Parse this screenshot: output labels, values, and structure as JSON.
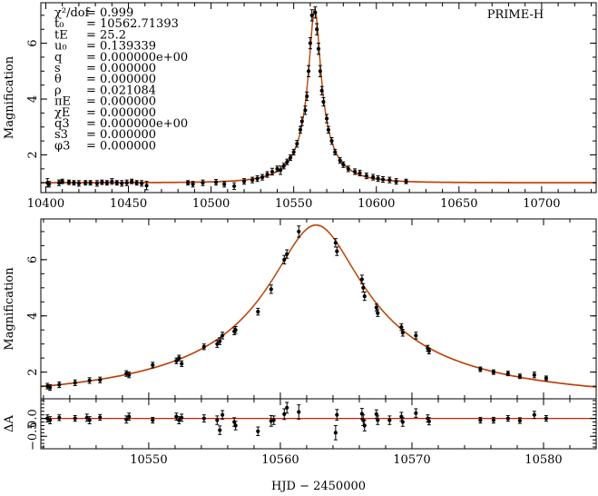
{
  "chart_data": [
    {
      "id": "top",
      "type": "scatter",
      "title": "",
      "label": "PRIME-H",
      "xlabel": "",
      "ylabel": "Magnification",
      "xlim": [
        10397,
        10733
      ],
      "ylim": [
        0.65,
        7.45
      ],
      "xticks": [
        10400,
        10450,
        10500,
        10550,
        10600,
        10650,
        10700
      ],
      "yticks": [
        2,
        4,
        6
      ],
      "grid": false,
      "fit_parameters": [
        {
          "name": "χ²/dof",
          "value": "= 0.999"
        },
        {
          "name": "t₀",
          "value": "= 10562.71393"
        },
        {
          "name": "tE",
          "value": "= 25.2"
        },
        {
          "name": "u₀",
          "value": "= 0.139339"
        },
        {
          "name": "q",
          "value": "= 0.000000e+00"
        },
        {
          "name": "s",
          "value": "= 0.000000"
        },
        {
          "name": "θ",
          "value": "= 0.000000"
        },
        {
          "name": "ρ",
          "value": "= 0.021084"
        },
        {
          "name": "πE",
          "value": "= 0.000000"
        },
        {
          "name": "χE",
          "value": "= 0.000000"
        },
        {
          "name": "q3",
          "value": "= 0.000000e+00"
        },
        {
          "name": "s3",
          "value": "= 0.000000"
        },
        {
          "name": "φ3",
          "value": "= 0.000000"
        }
      ],
      "model": {
        "t0": 10562.71393,
        "tE": 25.2,
        "u0": 0.139339,
        "color": "#cc2200",
        "overlay_color": "#a86a10"
      },
      "points": [
        {
          "x": 10401,
          "y": 1.0,
          "err": 0.15
        },
        {
          "x": 10402,
          "y": 0.95,
          "err": 0.1
        },
        {
          "x": 10408,
          "y": 1.0,
          "err": 0.1
        },
        {
          "x": 10410,
          "y": 1.05,
          "err": 0.08
        },
        {
          "x": 10414,
          "y": 1.02,
          "err": 0.08
        },
        {
          "x": 10417,
          "y": 1.0,
          "err": 0.08
        },
        {
          "x": 10420,
          "y": 0.98,
          "err": 0.1
        },
        {
          "x": 10424,
          "y": 1.0,
          "err": 0.08
        },
        {
          "x": 10427,
          "y": 1.0,
          "err": 0.08
        },
        {
          "x": 10431,
          "y": 0.98,
          "err": 0.1
        },
        {
          "x": 10434,
          "y": 1.02,
          "err": 0.08
        },
        {
          "x": 10437,
          "y": 1.0,
          "err": 0.08
        },
        {
          "x": 10440,
          "y": 1.05,
          "err": 0.1
        },
        {
          "x": 10443,
          "y": 1.0,
          "err": 0.08
        },
        {
          "x": 10446,
          "y": 0.98,
          "err": 0.1
        },
        {
          "x": 10449,
          "y": 1.0,
          "err": 0.1
        },
        {
          "x": 10452,
          "y": 1.05,
          "err": 0.08
        },
        {
          "x": 10455,
          "y": 1.0,
          "err": 0.08
        },
        {
          "x": 10458,
          "y": 0.98,
          "err": 0.1
        },
        {
          "x": 10461,
          "y": 0.9,
          "err": 0.15
        },
        {
          "x": 10486,
          "y": 1.0,
          "err": 0.08
        },
        {
          "x": 10489,
          "y": 0.95,
          "err": 0.1
        },
        {
          "x": 10495,
          "y": 1.0,
          "err": 0.1
        },
        {
          "x": 10503,
          "y": 1.02,
          "err": 0.1
        },
        {
          "x": 10508,
          "y": 0.95,
          "err": 0.1
        },
        {
          "x": 10514,
          "y": 0.88,
          "err": 0.12
        },
        {
          "x": 10520,
          "y": 1.05,
          "err": 0.1
        },
        {
          "x": 10525,
          "y": 1.1,
          "err": 0.1
        },
        {
          "x": 10528,
          "y": 1.15,
          "err": 0.1
        },
        {
          "x": 10531,
          "y": 1.2,
          "err": 0.1
        },
        {
          "x": 10534,
          "y": 1.3,
          "err": 0.1
        },
        {
          "x": 10537,
          "y": 1.4,
          "err": 0.12
        },
        {
          "x": 10540,
          "y": 1.5,
          "err": 0.1
        },
        {
          "x": 10542,
          "y": 1.45,
          "err": 0.15
        },
        {
          "x": 10544,
          "y": 1.6,
          "err": 0.1
        },
        {
          "x": 10546,
          "y": 1.75,
          "err": 0.1
        },
        {
          "x": 10548,
          "y": 1.9,
          "err": 0.1
        },
        {
          "x": 10550,
          "y": 2.1,
          "err": 0.1
        },
        {
          "x": 10552,
          "y": 2.4,
          "err": 0.12
        },
        {
          "x": 10554,
          "y": 2.9,
          "err": 0.12
        },
        {
          "x": 10555,
          "y": 3.2,
          "err": 0.15
        },
        {
          "x": 10557,
          "y": 3.6,
          "err": 0.15
        },
        {
          "x": 10558,
          "y": 4.1,
          "err": 0.15
        },
        {
          "x": 10559,
          "y": 5.0,
          "err": 0.2
        },
        {
          "x": 10560,
          "y": 6.0,
          "err": 0.2
        },
        {
          "x": 10561,
          "y": 7.0,
          "err": 0.2
        },
        {
          "x": 10563,
          "y": 7.1,
          "err": 0.2
        },
        {
          "x": 10564,
          "y": 6.5,
          "err": 0.2
        },
        {
          "x": 10565,
          "y": 5.8,
          "err": 0.2
        },
        {
          "x": 10566,
          "y": 5.0,
          "err": 0.2
        },
        {
          "x": 10567,
          "y": 4.3,
          "err": 0.15
        },
        {
          "x": 10568,
          "y": 3.9,
          "err": 0.15
        },
        {
          "x": 10570,
          "y": 3.3,
          "err": 0.15
        },
        {
          "x": 10571,
          "y": 2.9,
          "err": 0.12
        },
        {
          "x": 10573,
          "y": 2.5,
          "err": 0.12
        },
        {
          "x": 10575,
          "y": 2.1,
          "err": 0.1
        },
        {
          "x": 10578,
          "y": 1.8,
          "err": 0.1
        },
        {
          "x": 10580,
          "y": 1.65,
          "err": 0.1
        },
        {
          "x": 10583,
          "y": 1.5,
          "err": 0.1
        },
        {
          "x": 10587,
          "y": 1.4,
          "err": 0.1
        },
        {
          "x": 10590,
          "y": 1.35,
          "err": 0.1
        },
        {
          "x": 10594,
          "y": 1.25,
          "err": 0.1
        },
        {
          "x": 10598,
          "y": 1.2,
          "err": 0.1
        },
        {
          "x": 10601,
          "y": 1.15,
          "err": 0.1
        },
        {
          "x": 10604,
          "y": 1.12,
          "err": 0.1
        },
        {
          "x": 10608,
          "y": 1.1,
          "err": 0.1
        },
        {
          "x": 10612,
          "y": 1.05,
          "err": 0.1
        },
        {
          "x": 10618,
          "y": 1.05,
          "err": 0.08
        }
      ]
    },
    {
      "id": "zoom",
      "type": "scatter",
      "title": "",
      "xlabel": "",
      "ylabel": "Magnification",
      "xlim": [
        10541.8,
        10584
      ],
      "ylim": [
        1.05,
        7.45
      ],
      "xticks": [
        10550,
        10560,
        10570,
        10580
      ],
      "yticks": [
        2,
        4,
        6
      ],
      "grid": false,
      "points": [
        {
          "x": 10542.3,
          "y": 1.5,
          "err": 0.1
        },
        {
          "x": 10542.5,
          "y": 1.45,
          "err": 0.1
        },
        {
          "x": 10543.2,
          "y": 1.55,
          "err": 0.1
        },
        {
          "x": 10544.4,
          "y": 1.62,
          "err": 0.1
        },
        {
          "x": 10545.5,
          "y": 1.7,
          "err": 0.1
        },
        {
          "x": 10546.3,
          "y": 1.72,
          "err": 0.1
        },
        {
          "x": 10548.3,
          "y": 1.95,
          "err": 0.1
        },
        {
          "x": 10548.5,
          "y": 1.9,
          "err": 0.1
        },
        {
          "x": 10550.3,
          "y": 2.25,
          "err": 0.1
        },
        {
          "x": 10552.1,
          "y": 2.4,
          "err": 0.1
        },
        {
          "x": 10552.3,
          "y": 2.5,
          "err": 0.1
        },
        {
          "x": 10552.5,
          "y": 2.3,
          "err": 0.1
        },
        {
          "x": 10554.2,
          "y": 2.9,
          "err": 0.1
        },
        {
          "x": 10555.2,
          "y": 3.0,
          "err": 0.12
        },
        {
          "x": 10555.4,
          "y": 3.1,
          "err": 0.12
        },
        {
          "x": 10555.6,
          "y": 3.3,
          "err": 0.12
        },
        {
          "x": 10556.5,
          "y": 3.45,
          "err": 0.12
        },
        {
          "x": 10556.6,
          "y": 3.5,
          "err": 0.12
        },
        {
          "x": 10558.3,
          "y": 4.15,
          "err": 0.12
        },
        {
          "x": 10559.3,
          "y": 4.95,
          "err": 0.15
        },
        {
          "x": 10560.3,
          "y": 6.0,
          "err": 0.15
        },
        {
          "x": 10560.5,
          "y": 6.2,
          "err": 0.15
        },
        {
          "x": 10561.4,
          "y": 7.0,
          "err": 0.2
        },
        {
          "x": 10564.2,
          "y": 6.6,
          "err": 0.15
        },
        {
          "x": 10564.3,
          "y": 6.3,
          "err": 0.15
        },
        {
          "x": 10566.2,
          "y": 5.3,
          "err": 0.15
        },
        {
          "x": 10566.3,
          "y": 5.0,
          "err": 0.15
        },
        {
          "x": 10566.4,
          "y": 4.7,
          "err": 0.15
        },
        {
          "x": 10567.3,
          "y": 4.3,
          "err": 0.12
        },
        {
          "x": 10567.4,
          "y": 4.1,
          "err": 0.12
        },
        {
          "x": 10569.2,
          "y": 3.6,
          "err": 0.12
        },
        {
          "x": 10569.3,
          "y": 3.4,
          "err": 0.12
        },
        {
          "x": 10570.3,
          "y": 3.3,
          "err": 0.12
        },
        {
          "x": 10571.2,
          "y": 2.85,
          "err": 0.1
        },
        {
          "x": 10571.3,
          "y": 2.75,
          "err": 0.1
        },
        {
          "x": 10575.2,
          "y": 2.1,
          "err": 0.08
        },
        {
          "x": 10576.2,
          "y": 2.0,
          "err": 0.08
        },
        {
          "x": 10577.3,
          "y": 1.95,
          "err": 0.08
        },
        {
          "x": 10578.2,
          "y": 1.85,
          "err": 0.08
        },
        {
          "x": 10579.3,
          "y": 1.9,
          "err": 0.1
        },
        {
          "x": 10580.2,
          "y": 1.78,
          "err": 0.08
        }
      ]
    },
    {
      "id": "residuals",
      "type": "scatter",
      "title": "",
      "xlabel": "HJD − 2450000",
      "ylabel": "ΔA",
      "xlim": [
        10541.8,
        10584
      ],
      "ylim": [
        -0.85,
        0.55
      ],
      "xticks": [
        10550,
        10560,
        10570,
        10580
      ],
      "yticks": [
        0.0,
        -0.5
      ],
      "ytick_labels": [
        "0.0",
        "−0.5"
      ],
      "grid": false,
      "points": [
        {
          "x": 10542.3,
          "y": 0.0,
          "err": 0.1
        },
        {
          "x": 10542.5,
          "y": -0.05,
          "err": 0.1
        },
        {
          "x": 10543.2,
          "y": 0.02,
          "err": 0.08
        },
        {
          "x": 10544.4,
          "y": 0.0,
          "err": 0.08
        },
        {
          "x": 10545.3,
          "y": 0.02,
          "err": 0.1
        },
        {
          "x": 10545.5,
          "y": -0.05,
          "err": 0.1
        },
        {
          "x": 10546.3,
          "y": 0.03,
          "err": 0.08
        },
        {
          "x": 10548.3,
          "y": -0.03,
          "err": 0.1
        },
        {
          "x": 10548.5,
          "y": 0.05,
          "err": 0.1
        },
        {
          "x": 10550.3,
          "y": -0.05,
          "err": 0.08
        },
        {
          "x": 10552.1,
          "y": 0.05,
          "err": 0.1
        },
        {
          "x": 10552.3,
          "y": -0.05,
          "err": 0.1
        },
        {
          "x": 10552.5,
          "y": 0.02,
          "err": 0.1
        },
        {
          "x": 10554.2,
          "y": 0.0,
          "err": 0.1
        },
        {
          "x": 10555.2,
          "y": -0.05,
          "err": 0.12
        },
        {
          "x": 10555.4,
          "y": -0.33,
          "err": 0.12
        },
        {
          "x": 10555.6,
          "y": 0.1,
          "err": 0.12
        },
        {
          "x": 10556.5,
          "y": -0.1,
          "err": 0.12
        },
        {
          "x": 10556.6,
          "y": -0.2,
          "err": 0.12
        },
        {
          "x": 10558.3,
          "y": -0.36,
          "err": 0.12
        },
        {
          "x": 10559.3,
          "y": -0.07,
          "err": 0.15
        },
        {
          "x": 10559.5,
          "y": -0.05,
          "err": 0.12
        },
        {
          "x": 10560.3,
          "y": 0.12,
          "err": 0.15
        },
        {
          "x": 10560.5,
          "y": 0.3,
          "err": 0.15
        },
        {
          "x": 10561.4,
          "y": 0.18,
          "err": 0.2
        },
        {
          "x": 10564.2,
          "y": -0.4,
          "err": 0.2
        },
        {
          "x": 10564.3,
          "y": 0.1,
          "err": 0.15
        },
        {
          "x": 10566.2,
          "y": 0.13,
          "err": 0.15
        },
        {
          "x": 10566.3,
          "y": -0.05,
          "err": 0.15
        },
        {
          "x": 10566.4,
          "y": -0.2,
          "err": 0.15
        },
        {
          "x": 10567.3,
          "y": 0.12,
          "err": 0.12
        },
        {
          "x": 10567.4,
          "y": -0.05,
          "err": 0.12
        },
        {
          "x": 10568.3,
          "y": -0.05,
          "err": 0.12
        },
        {
          "x": 10569.2,
          "y": 0.05,
          "err": 0.12
        },
        {
          "x": 10569.3,
          "y": -0.1,
          "err": 0.12
        },
        {
          "x": 10570.3,
          "y": 0.15,
          "err": 0.12
        },
        {
          "x": 10571.2,
          "y": 0.0,
          "err": 0.1
        },
        {
          "x": 10571.3,
          "y": -0.08,
          "err": 0.1
        },
        {
          "x": 10575.2,
          "y": -0.05,
          "err": 0.08
        },
        {
          "x": 10576.2,
          "y": -0.05,
          "err": 0.08
        },
        {
          "x": 10577.3,
          "y": 0.0,
          "err": 0.08
        },
        {
          "x": 10578.2,
          "y": -0.06,
          "err": 0.08
        },
        {
          "x": 10579.3,
          "y": 0.1,
          "err": 0.1
        },
        {
          "x": 10580.2,
          "y": 0.0,
          "err": 0.08
        }
      ]
    }
  ]
}
